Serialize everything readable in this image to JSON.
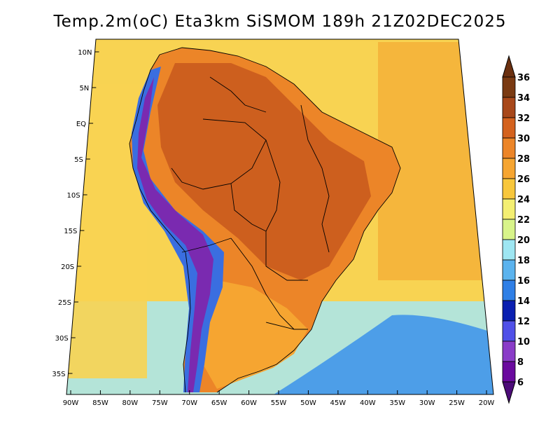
{
  "title": "Temp.2m(oC) Eta3km SiSMOM 189h 21Z02DEC2025",
  "lat_labels": [
    "10N",
    "5N",
    "EQ",
    "5S",
    "10S",
    "15S",
    "20S",
    "25S",
    "30S",
    "35S"
  ],
  "lon_labels": [
    "90W",
    "85W",
    "80W",
    "75W",
    "70W",
    "65W",
    "60W",
    "55W",
    "50W",
    "45W",
    "40W",
    "35W",
    "30W",
    "25W",
    "20W"
  ],
  "colorbar": {
    "levels": [
      "36",
      "34",
      "32",
      "30",
      "28",
      "26",
      "24",
      "22",
      "20",
      "18",
      "16",
      "14",
      "12",
      "10",
      "8",
      "6"
    ],
    "colors": [
      "#7a3a12",
      "#a8481a",
      "#d4621e",
      "#ec8528",
      "#f6a531",
      "#f8c73c",
      "#f4ef72",
      "#d8f48a",
      "#9ee6f2",
      "#5bb3ee",
      "#2f7fe6",
      "#0a1fb0",
      "#5050e8",
      "#8a3cc8",
      "#6a0a9e",
      "#5a1080"
    ],
    "top_color": "#6b3010",
    "bottom_color": "#4c0c78"
  },
  "map": {
    "ocean_colors": {
      "tropical": "#f4b23a",
      "subtropical": "#f8d352",
      "cool": "#a8e6f0",
      "cold": "#4d9ee8"
    },
    "land_colors": {
      "hot": "#c8581c",
      "warm": "#ec8528",
      "mild": "#f6a531",
      "andes_high": "#7a2ab0",
      "andes_mid": "#3a6ee0"
    }
  }
}
